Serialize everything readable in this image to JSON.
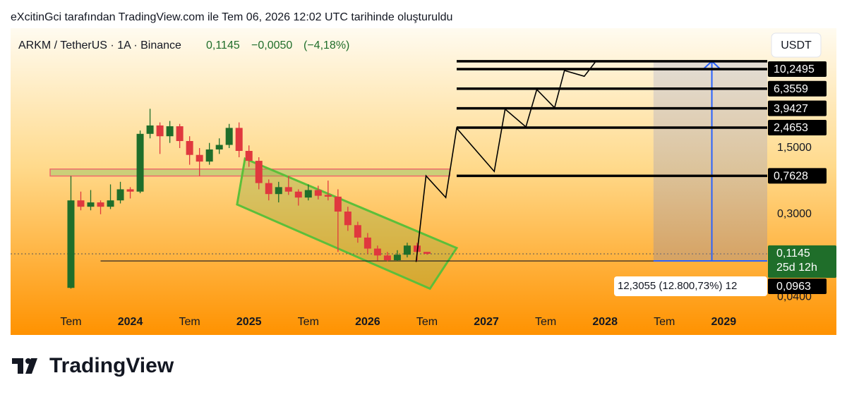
{
  "header": {
    "credit": "eXcitinGci tarafından TradingView.com ile Tem 06, 2026 12:02 UTC tarihinde oluşturuldu"
  },
  "footer": {
    "logo": "TradingView"
  },
  "chart_data": {
    "type": "candlestick",
    "title": "ARKM / TetherUS · 1A · Binance",
    "last": {
      "value": 0.1145,
      "label": "0,1145"
    },
    "change": {
      "value": -0.005,
      "label": "−0,0050"
    },
    "change_pct": {
      "value": -4.18,
      "label": "(−4,18%)"
    },
    "currency": "USDT",
    "up_color": "#1f6e2a",
    "down_color": "#e0383e",
    "x": [
      0,
      1,
      2,
      3,
      4,
      5,
      6,
      7,
      8,
      9,
      10,
      11,
      12,
      13,
      14,
      15,
      16,
      17,
      18,
      19,
      20,
      21,
      22,
      23,
      24,
      25,
      26,
      27,
      28,
      29,
      30,
      31,
      32,
      33,
      34,
      35,
      36
    ],
    "open": [
      0.05,
      0.42,
      0.36,
      0.4,
      0.36,
      0.42,
      0.55,
      0.52,
      2.12,
      2.6,
      2.0,
      2.55,
      1.78,
      1.27,
      1.08,
      1.45,
      1.62,
      2.45,
      1.4,
      1.1,
      0.64,
      0.49,
      0.58,
      0.52,
      0.45,
      0.54,
      0.48,
      0.46,
      0.32,
      0.23,
      0.17,
      0.13,
      0.11,
      0.098,
      0.112,
      0.14,
      0.12
    ],
    "high": [
      0.76,
      0.52,
      0.54,
      0.42,
      0.62,
      0.66,
      0.58,
      2.3,
      3.9,
      2.8,
      2.9,
      2.7,
      2.0,
      1.5,
      1.7,
      1.9,
      2.7,
      2.8,
      1.6,
      1.2,
      0.7,
      0.66,
      0.76,
      0.55,
      0.62,
      0.6,
      0.68,
      0.55,
      0.36,
      0.25,
      0.19,
      0.14,
      0.12,
      0.125,
      0.15,
      0.15,
      0.12
    ],
    "low": [
      0.049,
      0.33,
      0.33,
      0.3,
      0.34,
      0.39,
      0.44,
      0.5,
      1.9,
      1.3,
      1.7,
      1.5,
      1.0,
      0.76,
      1.0,
      1.3,
      1.5,
      1.2,
      0.95,
      0.55,
      0.42,
      0.4,
      0.48,
      0.37,
      0.42,
      0.43,
      0.42,
      0.12,
      0.2,
      0.15,
      0.115,
      0.097,
      0.095,
      0.096,
      0.105,
      0.0963,
      0.112
    ],
    "close": [
      0.42,
      0.36,
      0.4,
      0.36,
      0.42,
      0.55,
      0.52,
      2.12,
      2.6,
      2.0,
      2.55,
      1.78,
      1.27,
      1.08,
      1.45,
      1.62,
      2.45,
      1.4,
      1.1,
      0.64,
      0.49,
      0.58,
      0.52,
      0.45,
      0.54,
      0.47,
      0.46,
      0.32,
      0.23,
      0.17,
      0.13,
      0.11,
      0.098,
      0.112,
      0.14,
      0.12,
      0.1145
    ],
    "xlim": [
      -6.1,
      70.4
    ],
    "xticks": [
      {
        "value": 0,
        "label": "Tem"
      },
      {
        "value": 6,
        "label": "2024"
      },
      {
        "value": 12,
        "label": "Tem"
      },
      {
        "value": 18,
        "label": "2025"
      },
      {
        "value": 24,
        "label": "Tem"
      },
      {
        "value": 30,
        "label": "2026"
      },
      {
        "value": 36,
        "label": "Tem"
      },
      {
        "value": 42,
        "label": "2027"
      },
      {
        "value": 48,
        "label": "Tem"
      },
      {
        "value": 54,
        "label": "2028"
      },
      {
        "value": 60,
        "label": "Tem"
      },
      {
        "value": 66,
        "label": "2029"
      }
    ],
    "ylim": [
      0.029,
      27.7
    ],
    "log_scale": true,
    "yticks": [
      {
        "value": 1.5,
        "label": "1,5000"
      },
      {
        "value": 0.3,
        "label": "0,3000"
      },
      {
        "value": 0.04,
        "label": "0,0400"
      }
    ],
    "levels": [
      {
        "value": 10.2495,
        "label": "10,2495"
      },
      {
        "value": 6.3559,
        "label": "6,3559"
      },
      {
        "value": 3.9427,
        "label": "3,9427"
      },
      {
        "value": 2.4653,
        "label": "2,4653"
      },
      {
        "value": 0.7628,
        "label": "0,7628"
      }
    ],
    "levels_start": 39,
    "price_tag": {
      "value": 0.1145,
      "label": "0,1145",
      "countdown": "25d 12h"
    },
    "low_tag": {
      "value": 0.0963,
      "label": "0,0963",
      "start": 3
    },
    "zone": {
      "x": [
        -2.1,
        38.3
      ],
      "y": [
        0.76,
        0.9
      ]
    },
    "channel": {
      "x": [
        17.6,
        39.0,
        36.3,
        16.8
      ],
      "y": [
        1.16,
        0.132,
        0.049,
        0.38
      ]
    },
    "projection": {
      "x": [
        34.9,
        35.9,
        37.9,
        39,
        42.8,
        43.9,
        46,
        47.1,
        48.9,
        49.9,
        51.9,
        53
      ],
      "y": [
        0.094,
        0.763,
        0.45,
        2.43,
        0.85,
        3.87,
        2.51,
        6.23,
        4.0,
        9.9,
        8.6,
        12.1
      ]
    },
    "measure": {
      "x": [
        58.9,
        70.4
      ],
      "arrow_x": 64.8,
      "change": 12.3055,
      "label": "12,3055 (12.800,73%) 12"
    }
  }
}
